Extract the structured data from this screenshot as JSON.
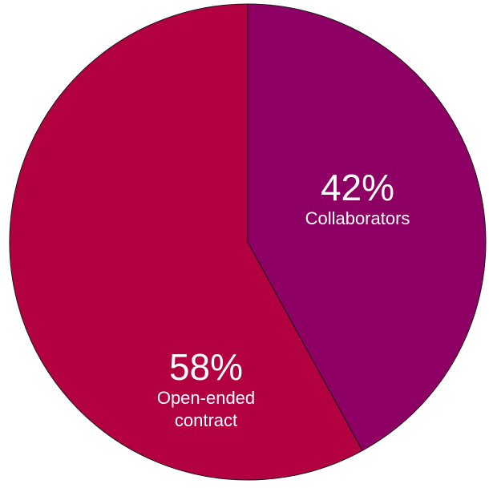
{
  "chart_data": {
    "type": "pie",
    "title": "",
    "slices": [
      {
        "label_lines": [
          "Collaborators"
        ],
        "value": 42,
        "value_label": "42%",
        "color": "#8E0064"
      },
      {
        "label_lines": [
          "Open-ended",
          "contract"
        ],
        "value": 58,
        "value_label": "58%",
        "color": "#B30041"
      }
    ],
    "stroke_color": "#1a1a1a",
    "legend": "none",
    "start": "top",
    "direction": "clockwise"
  }
}
